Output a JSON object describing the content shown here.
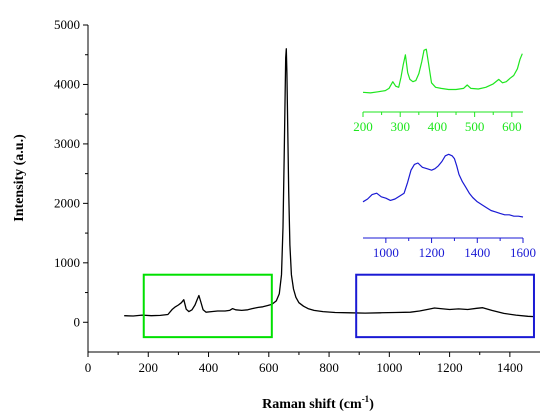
{
  "chart_data": {
    "type": "line",
    "main": {
      "xlabel": "Raman shift (cm",
      "xlabel_sup": "-1",
      "xlabel_end": ")",
      "ylabel": "Intensity (a.u.)",
      "xlim": [
        0,
        1500
      ],
      "ylim": [
        -500,
        5000
      ],
      "xticks": [
        0,
        200,
        400,
        600,
        800,
        1000,
        1200,
        1400
      ],
      "yticks": [
        0,
        1000,
        2000,
        3000,
        4000,
        5000
      ],
      "color": "#000000",
      "series": [
        {
          "x": [
            120,
            150,
            180,
            210,
            240,
            265,
            280,
            290,
            300,
            310,
            318,
            326,
            335,
            345,
            355,
            362,
            368,
            374,
            382,
            392,
            410,
            430,
            455,
            470,
            480,
            490,
            510,
            530,
            545,
            555,
            565,
            580,
            595,
            610,
            625,
            635,
            642,
            647,
            651,
            654,
            656,
            658,
            660,
            663,
            666,
            670,
            675,
            682,
            690,
            700,
            715,
            730,
            750,
            780,
            820,
            870,
            920,
            970,
            1020,
            1070,
            1100,
            1130,
            1150,
            1170,
            1200,
            1230,
            1260,
            1290,
            1310,
            1340,
            1380,
            1420,
            1460,
            1480
          ],
          "y": [
            110,
            105,
            120,
            110,
            115,
            130,
            220,
            260,
            290,
            330,
            380,
            220,
            180,
            210,
            290,
            380,
            450,
            350,
            210,
            170,
            180,
            190,
            190,
            200,
            230,
            210,
            200,
            210,
            230,
            240,
            250,
            260,
            280,
            300,
            360,
            480,
            800,
            1600,
            2800,
            3800,
            4450,
            4600,
            4200,
            3200,
            2200,
            1300,
            800,
            560,
            420,
            330,
            270,
            230,
            200,
            180,
            165,
            160,
            155,
            160,
            165,
            170,
            190,
            220,
            240,
            230,
            215,
            225,
            215,
            235,
            245,
            200,
            150,
            120,
            100,
            95
          ]
        }
      ],
      "boxes": [
        {
          "name": "green",
          "color": "#00e000",
          "x": [
            185,
            610
          ],
          "y": [
            -250,
            800
          ]
        },
        {
          "name": "blue",
          "color": "#1a1ad4",
          "x": [
            890,
            1480
          ],
          "y": [
            -250,
            800
          ]
        }
      ]
    },
    "inset_green": {
      "color": "#1ee61e",
      "xlim": [
        200,
        630
      ],
      "xticks": [
        200,
        300,
        400,
        500,
        600
      ],
      "series": [
        {
          "x": [
            200,
            220,
            240,
            260,
            270,
            280,
            288,
            296,
            302,
            308,
            314,
            320,
            326,
            334,
            342,
            350,
            358,
            364,
            370,
            376,
            384,
            395,
            410,
            430,
            450,
            470,
            480,
            490,
            510,
            530,
            550,
            565,
            575,
            585,
            595,
            605,
            615,
            622,
            628
          ],
          "y": [
            0.03,
            0.02,
            0.04,
            0.06,
            0.1,
            0.22,
            0.14,
            0.12,
            0.3,
            0.52,
            0.7,
            0.38,
            0.26,
            0.22,
            0.24,
            0.36,
            0.58,
            0.78,
            0.8,
            0.55,
            0.2,
            0.12,
            0.1,
            0.08,
            0.08,
            0.1,
            0.16,
            0.1,
            0.09,
            0.12,
            0.18,
            0.26,
            0.2,
            0.22,
            0.28,
            0.33,
            0.45,
            0.62,
            0.72
          ]
        }
      ]
    },
    "inset_blue": {
      "color": "#1a1ad4",
      "xlim": [
        900,
        1600
      ],
      "xticks": [
        1000,
        1200,
        1400,
        1600
      ],
      "series": [
        {
          "x": [
            900,
            920,
            940,
            960,
            980,
            1000,
            1020,
            1040,
            1060,
            1080,
            1095,
            1110,
            1125,
            1140,
            1160,
            1180,
            1200,
            1215,
            1230,
            1245,
            1260,
            1275,
            1290,
            1300,
            1310,
            1320,
            1335,
            1350,
            1365,
            1380,
            1400,
            1420,
            1440,
            1460,
            1480,
            1500,
            1520,
            1540,
            1560,
            1580,
            1600
          ],
          "y": [
            0.28,
            0.32,
            0.38,
            0.4,
            0.35,
            0.33,
            0.3,
            0.32,
            0.36,
            0.4,
            0.55,
            0.72,
            0.8,
            0.82,
            0.76,
            0.74,
            0.72,
            0.74,
            0.78,
            0.84,
            0.92,
            0.94,
            0.92,
            0.88,
            0.78,
            0.66,
            0.56,
            0.48,
            0.4,
            0.34,
            0.28,
            0.24,
            0.2,
            0.16,
            0.14,
            0.12,
            0.1,
            0.1,
            0.08,
            0.08,
            0.07
          ]
        }
      ]
    }
  }
}
